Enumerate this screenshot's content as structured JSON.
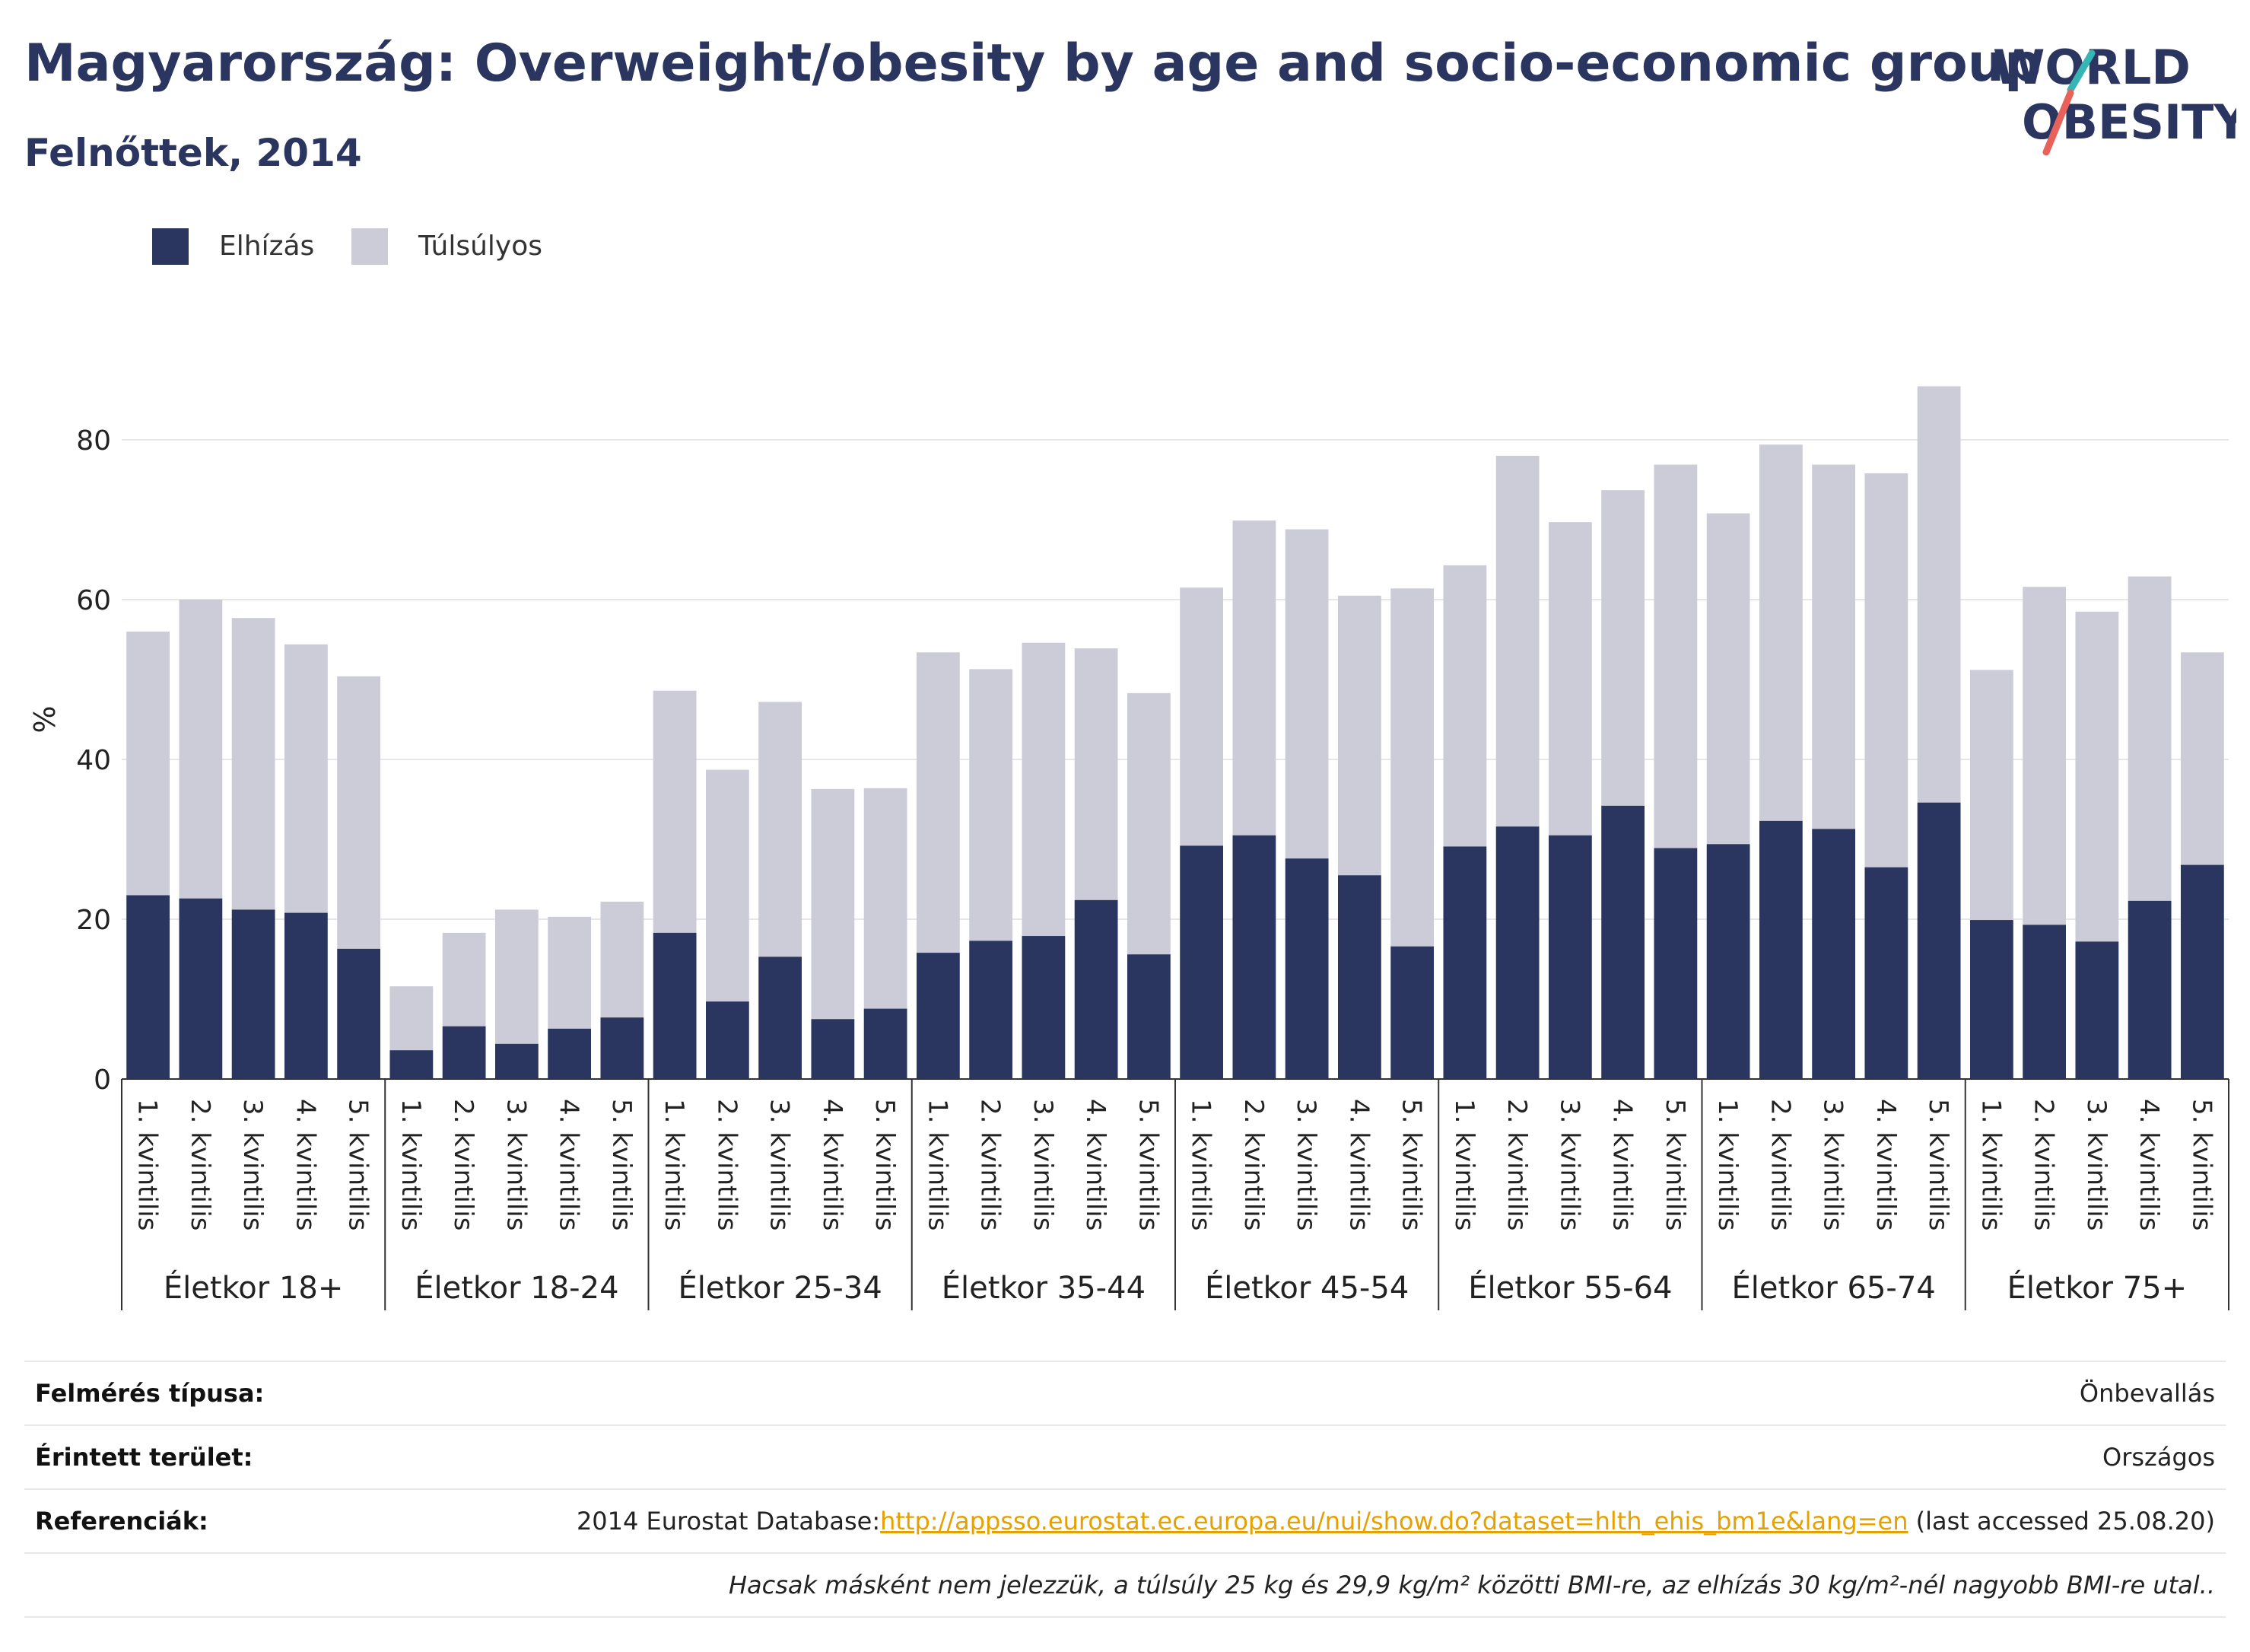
{
  "header": {
    "title": "Magyarország: Overweight/obesity by age and socio-economic group",
    "subtitle": "Felnőttek, 2014",
    "logo_line1": "WORLD",
    "logo_line2": "OBESITY"
  },
  "colors": {
    "obesity": "#2b3660",
    "overweight": "#cbccd8",
    "title": "#2b3660",
    "link": "#e5a100",
    "logo_teal": "#35b6b4",
    "logo_red": "#e8625a"
  },
  "chart_data": {
    "type": "bar",
    "stacked": true,
    "title": "Magyarország: Overweight/obesity by age and socio-economic group",
    "subtitle": "Felnőttek, 2014",
    "ylabel": "%",
    "xlabel": "",
    "ylim": [
      0,
      90
    ],
    "yticks": [
      0,
      20,
      40,
      60,
      80
    ],
    "grid": true,
    "legend_position": "top-left",
    "categories": [
      "1. kvintilis",
      "2. kvintilis",
      "3. kvintilis",
      "4. kvintilis",
      "5. kvintilis"
    ],
    "groups": [
      "Életkor 18+",
      "Életkor 18-24",
      "Életkor 25-34",
      "Életkor 35-44",
      "Életkor 45-54",
      "Életkor 55-64",
      "Életkor 65-74",
      "Életkor 75+"
    ],
    "series": [
      {
        "name": "Elhízás",
        "values": [
          [
            23.0,
            22.6,
            21.2,
            20.8,
            16.3
          ],
          [
            3.6,
            6.6,
            4.4,
            6.3,
            7.7
          ],
          [
            18.3,
            9.7,
            15.3,
            7.5,
            8.8
          ],
          [
            15.8,
            17.3,
            17.9,
            22.4,
            15.6
          ],
          [
            29.2,
            30.5,
            27.6,
            25.5,
            16.6
          ],
          [
            29.1,
            31.6,
            30.5,
            34.2,
            28.9
          ],
          [
            29.4,
            32.3,
            31.3,
            26.5,
            34.6
          ],
          [
            19.9,
            19.3,
            17.2,
            22.3,
            26.8
          ]
        ]
      },
      {
        "name": "Túlsúlyos",
        "values": [
          [
            33.0,
            37.4,
            36.5,
            33.6,
            34.1
          ],
          [
            8.0,
            11.7,
            16.8,
            14.0,
            14.5
          ],
          [
            30.3,
            29.0,
            31.9,
            28.8,
            27.6
          ],
          [
            37.6,
            34.0,
            36.7,
            31.5,
            32.7
          ],
          [
            32.3,
            39.4,
            41.2,
            35.0,
            44.8
          ],
          [
            35.2,
            46.4,
            39.2,
            39.5,
            48.0
          ],
          [
            41.4,
            47.1,
            45.6,
            49.3,
            52.1
          ],
          [
            31.3,
            42.3,
            41.3,
            40.6,
            26.6
          ]
        ]
      }
    ]
  },
  "info": {
    "survey_type_label": "Felmérés típusa:",
    "survey_type_value": "Önbevallás",
    "area_label": "Érintett terület:",
    "area_value": "Országos",
    "references_label": "Referenciák:",
    "references_prefix": "2014 Eurostat Database:",
    "references_link": "http://appsso.eurostat.ec.europa.eu/nui/show.do?dataset=hlth_ehis_bm1e&lang=en",
    "references_suffix": " (last accessed 25.08.20)",
    "note": "Hacsak másként nem jelezzük, a túlsúly 25 kg és 29,9 kg/m² közötti BMI-re, az elhízás 30 kg/m²-nél nagyobb BMI-re utal.."
  }
}
